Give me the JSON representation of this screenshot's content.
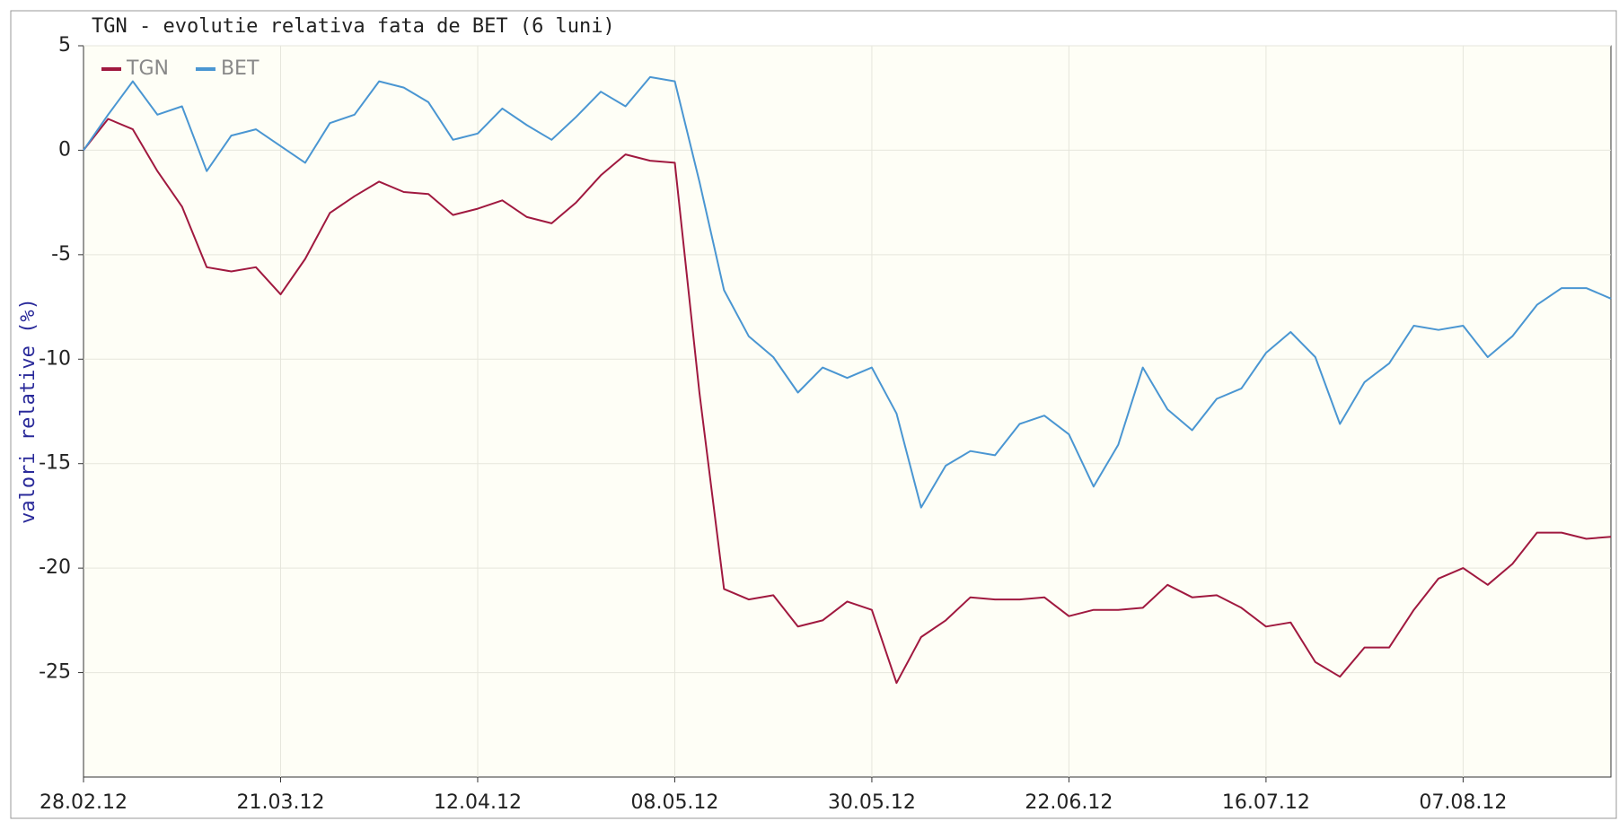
{
  "chart_data": {
    "type": "line",
    "title": "TGN - evolutie relativa fata de BET (6 luni)",
    "y_label": "valori relative (%)",
    "categories": [
      "28.02.12",
      null,
      null,
      null,
      null,
      null,
      null,
      null,
      "21.03.12",
      null,
      null,
      null,
      null,
      null,
      null,
      null,
      "12.04.12",
      null,
      null,
      null,
      null,
      null,
      null,
      null,
      "08.05.12",
      null,
      null,
      null,
      null,
      null,
      null,
      null,
      "30.05.12",
      null,
      null,
      null,
      null,
      null,
      null,
      null,
      "22.06.12",
      null,
      null,
      null,
      null,
      null,
      null,
      null,
      "16.07.12",
      null,
      null,
      null,
      null,
      null,
      null,
      null,
      "07.08.12",
      null,
      null,
      null,
      null,
      null,
      null
    ],
    "series": [
      {
        "name": "TGN",
        "color": "#a0193f",
        "values": [
          0,
          1.5,
          1.0,
          -1.0,
          -2.7,
          -5.6,
          -5.8,
          -5.6,
          -6.9,
          -5.2,
          -3.0,
          -2.2,
          -1.5,
          -2.0,
          -2.1,
          -3.1,
          -2.8,
          -2.4,
          -3.2,
          -3.5,
          -2.5,
          -1.2,
          -0.2,
          -0.5,
          -0.6,
          -11.6,
          -21.0,
          -21.5,
          -21.3,
          -22.8,
          -22.5,
          -21.6,
          -22.0,
          -25.5,
          -23.3,
          -22.5,
          -21.4,
          -21.5,
          -21.5,
          -21.4,
          -22.3,
          -22.0,
          -22.0,
          -21.9,
          -20.8,
          -21.4,
          -21.3,
          -21.9,
          -22.8,
          -22.6,
          -24.5,
          -25.2,
          -23.8,
          -23.8,
          -22.0,
          -20.5,
          -20.0,
          -20.8,
          -19.8,
          -18.3,
          -18.3,
          -18.6,
          -18.5
        ]
      },
      {
        "name": "BET",
        "color": "#4a96d2",
        "values": [
          0,
          1.7,
          3.3,
          1.7,
          2.1,
          -1.0,
          0.7,
          1.0,
          0.2,
          -0.6,
          1.3,
          1.7,
          3.3,
          3.0,
          2.3,
          0.5,
          0.8,
          2.0,
          1.2,
          0.5,
          1.6,
          2.8,
          2.1,
          3.5,
          3.3,
          -1.5,
          -6.7,
          -8.9,
          -9.9,
          -11.6,
          -10.4,
          -10.9,
          -10.4,
          -12.6,
          -17.1,
          -15.1,
          -14.4,
          -14.6,
          -13.1,
          -12.7,
          -13.6,
          -16.1,
          -14.1,
          -10.4,
          -12.4,
          -13.4,
          -11.9,
          -11.4,
          -9.7,
          -8.7,
          -9.9,
          -13.1,
          -11.1,
          -10.2,
          -8.4,
          -8.6,
          -8.4,
          -9.9,
          -8.9,
          -7.4,
          -6.6,
          -6.6,
          -7.1
        ]
      }
    ],
    "ylim": [
      -30,
      5
    ],
    "yticks": [
      5,
      0,
      -5,
      -10,
      -15,
      -20,
      -25
    ],
    "grid": true,
    "legend": "upper left"
  }
}
